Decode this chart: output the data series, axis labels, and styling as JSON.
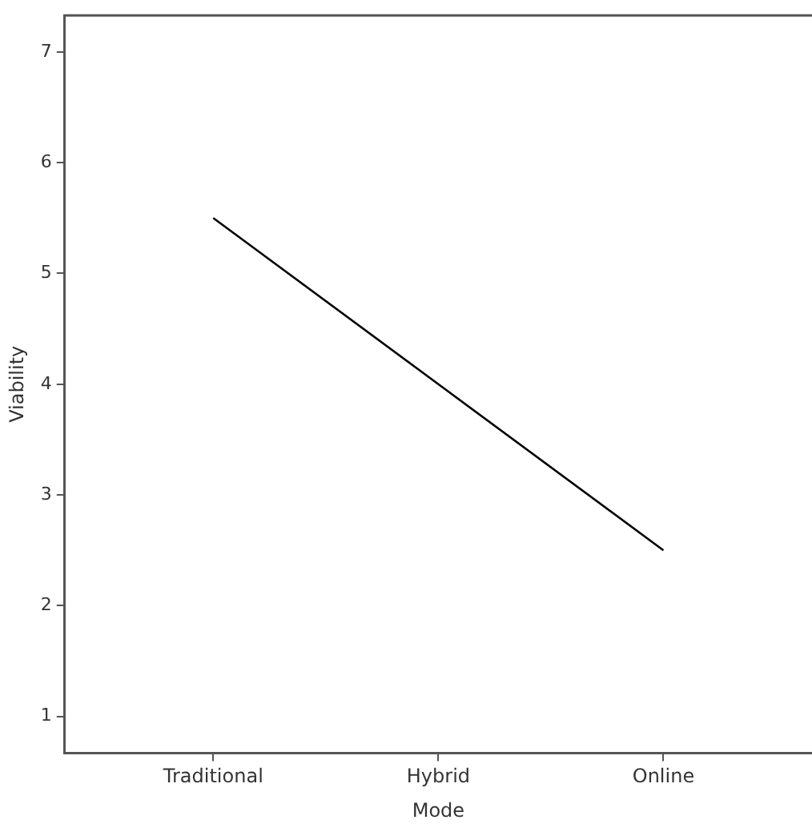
{
  "chart_data": {
    "type": "line",
    "xlabel": "Mode",
    "ylabel": "Viability",
    "categories": [
      "Traditional",
      "Hybrid",
      "Online"
    ],
    "series": [
      {
        "color": "#000000",
        "values": [
          5.5,
          4.0,
          2.5
        ]
      }
    ],
    "ylim": [
      0.67,
      7.33
    ],
    "yticks": [
      1,
      2,
      3,
      4,
      5,
      6,
      7
    ],
    "grid": false,
    "legend": false,
    "marker": "none",
    "line_style": "solid"
  }
}
